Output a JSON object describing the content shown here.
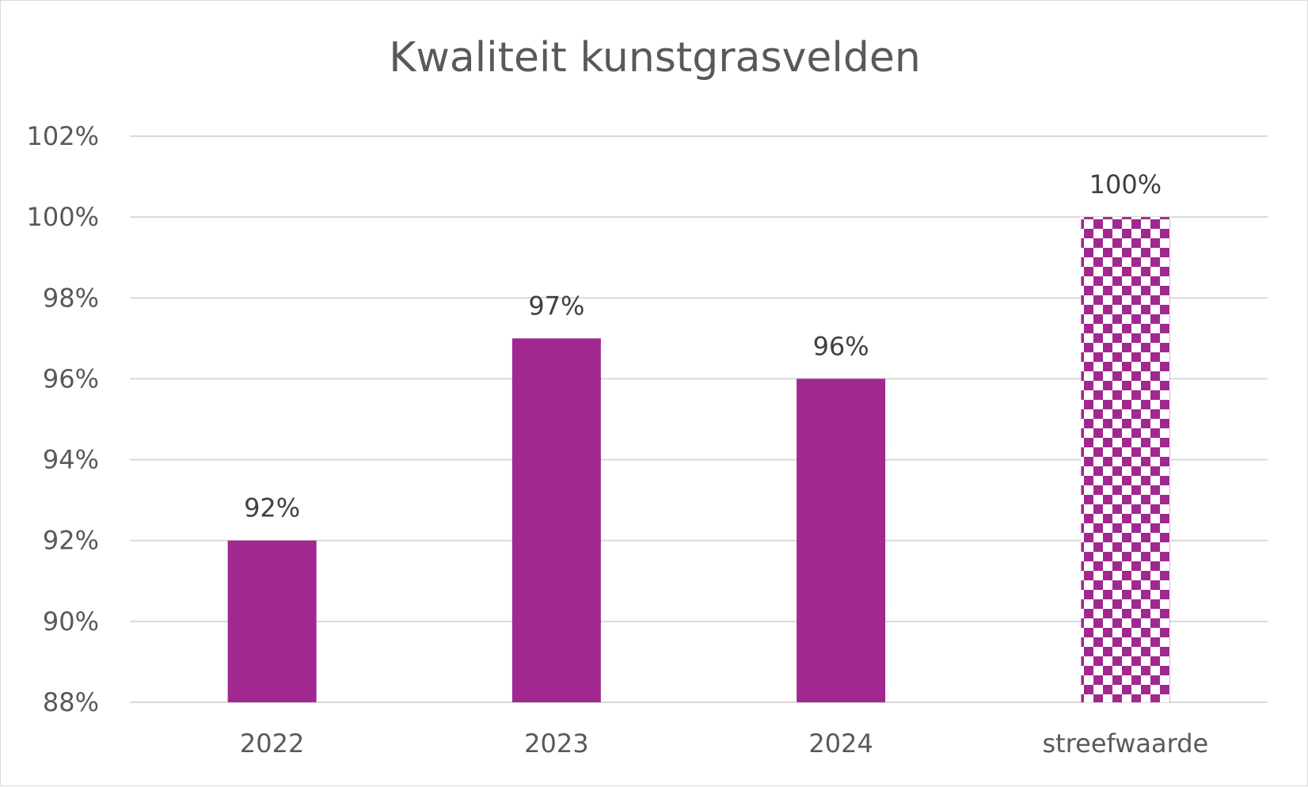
{
  "chart_data": {
    "type": "bar",
    "title": "Kwaliteit kunstgrasvelden",
    "xlabel": "",
    "ylabel": "",
    "categories": [
      "2022",
      "2023",
      "2024",
      "streefwaarde"
    ],
    "values": [
      92,
      97,
      96,
      100
    ],
    "data_labels": [
      "92%",
      "97%",
      "96%",
      "100%"
    ],
    "bar_patterns": [
      "solid",
      "solid",
      "solid",
      "checkerboard"
    ],
    "ylim": [
      88,
      102
    ],
    "y_ticks": [
      88,
      90,
      92,
      94,
      96,
      98,
      100,
      102
    ],
    "y_tick_labels": [
      "88%",
      "90%",
      "92%",
      "94%",
      "96%",
      "98%",
      "100%",
      "102%"
    ],
    "grid": true,
    "legend": "none",
    "colors": {
      "bar": "#a0288f",
      "grid": "#d9d9d9",
      "text": "#595959",
      "data_label": "#404040"
    }
  }
}
